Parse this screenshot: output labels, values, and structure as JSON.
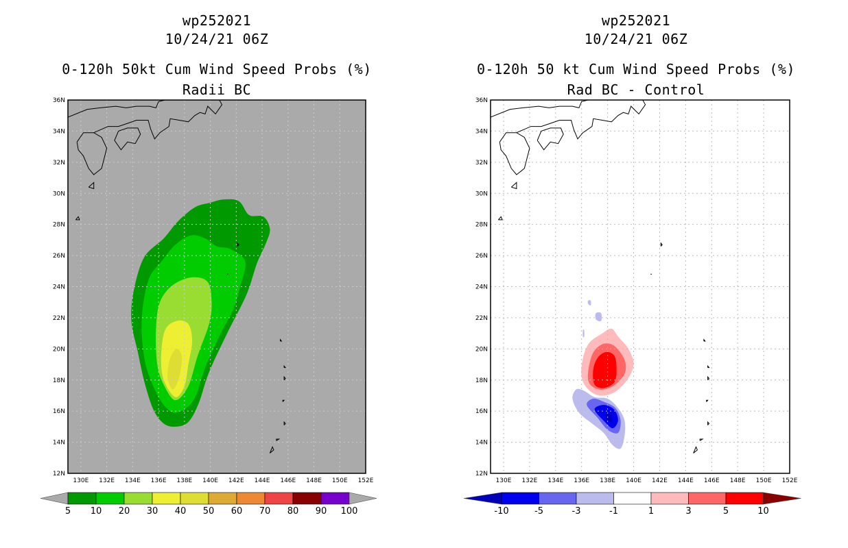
{
  "left_panel": {
    "title_lines": [
      "wp252021",
      "10/24/21 06Z",
      "0-120h 50kt Cum Wind Speed Probs (%)",
      "Radii BC"
    ],
    "colorbar": {
      "labels": [
        "5",
        "10",
        "20",
        "30",
        "40",
        "50",
        "60",
        "70",
        "80",
        "90",
        "100"
      ],
      "colors": [
        "#009900",
        "#00cc00",
        "#99dd33",
        "#eeee33",
        "#dddd33",
        "#ddaa33",
        "#ee8833",
        "#ee4444",
        "#880000",
        "#7700cc"
      ]
    }
  },
  "right_panel": {
    "title_lines": [
      "wp252021",
      "10/24/21 06Z",
      "0-120h 50 kt Cum Wind Speed Probs (%)",
      "Rad BC - Control"
    ],
    "colorbar": {
      "labels": [
        "-10",
        "-5",
        "-3",
        "-1",
        "1",
        "3",
        "5",
        "10"
      ],
      "colors": [
        "#0000bb",
        "#0000ee",
        "#6666ee",
        "#bbbbee",
        "#ffffff",
        "#ffbbbb",
        "#ff6666",
        "#ff0000",
        "#880000"
      ]
    }
  },
  "chart_data": [
    {
      "type": "heatmap",
      "title": "0-120h 50kt Cum Wind Speed Probs (%)",
      "subtitle": "Radii BC",
      "storm": "wp252021",
      "valid": "10/24/21 06Z",
      "xlim": [
        129,
        152
      ],
      "ylim": [
        12,
        36
      ],
      "x_ticks": [
        "130E",
        "132E",
        "134E",
        "136E",
        "138E",
        "140E",
        "142E",
        "144E",
        "146E",
        "148E",
        "150E",
        "152E"
      ],
      "y_ticks": [
        "12N",
        "14N",
        "16N",
        "18N",
        "20N",
        "22N",
        "24N",
        "26N",
        "28N",
        "30N",
        "32N",
        "34N",
        "36N"
      ],
      "levels": [
        5,
        10,
        20,
        30,
        40,
        50,
        60,
        70,
        80,
        90,
        100
      ],
      "contours": [
        {
          "level": 5,
          "color": "#009900",
          "lonlat": [
            [
              137.3,
              15.0
            ],
            [
              138.3,
              15.3
            ],
            [
              139.1,
              16.5
            ],
            [
              139.9,
              18.5
            ],
            [
              141.3,
              21.0
            ],
            [
              142.8,
              23.5
            ],
            [
              143.6,
              25.5
            ],
            [
              144.3,
              26.8
            ],
            [
              144.6,
              27.7
            ],
            [
              144.1,
              28.5
            ],
            [
              143.0,
              28.6
            ],
            [
              142.2,
              29.5
            ],
            [
              141.0,
              29.6
            ],
            [
              140.0,
              29.4
            ],
            [
              138.8,
              29.1
            ],
            [
              137.5,
              28.2
            ],
            [
              136.4,
              27.1
            ],
            [
              134.9,
              25.9
            ],
            [
              134.1,
              23.8
            ],
            [
              133.9,
              21.8
            ],
            [
              134.4,
              19.8
            ],
            [
              134.9,
              17.9
            ],
            [
              135.6,
              16.1
            ],
            [
              136.4,
              15.2
            ]
          ]
        },
        {
          "level": 10,
          "color": "#00cc00",
          "lonlat": [
            [
              137.4,
              15.9
            ],
            [
              138.7,
              16.7
            ],
            [
              139.6,
              18.8
            ],
            [
              140.8,
              21.0
            ],
            [
              141.8,
              22.6
            ],
            [
              142.3,
              24.0
            ],
            [
              142.7,
              25.6
            ],
            [
              141.6,
              26.4
            ],
            [
              140.5,
              26.6
            ],
            [
              139.6,
              27.1
            ],
            [
              138.5,
              27.3
            ],
            [
              137.3,
              26.7
            ],
            [
              136.2,
              25.6
            ],
            [
              135.3,
              24.6
            ],
            [
              134.8,
              22.8
            ],
            [
              134.7,
              21.0
            ],
            [
              135.0,
              19.0
            ],
            [
              135.7,
              17.4
            ],
            [
              136.5,
              16.3
            ]
          ]
        },
        {
          "level": 20,
          "color": "#99dd33",
          "lonlat": [
            [
              137.3,
              16.7
            ],
            [
              138.3,
              17.6
            ],
            [
              139.0,
              19.5
            ],
            [
              139.9,
              21.6
            ],
            [
              140.1,
              23.0
            ],
            [
              139.8,
              24.3
            ],
            [
              138.6,
              24.6
            ],
            [
              137.1,
              24.1
            ],
            [
              136.1,
              23.0
            ],
            [
              135.8,
              21.2
            ],
            [
              135.9,
              19.0
            ],
            [
              136.4,
              17.7
            ]
          ]
        },
        {
          "level": 30,
          "color": "#eeee33",
          "lonlat": [
            [
              137.3,
              16.9
            ],
            [
              138.0,
              17.6
            ],
            [
              138.3,
              19.0
            ],
            [
              138.6,
              20.5
            ],
            [
              138.3,
              21.6
            ],
            [
              137.4,
              21.8
            ],
            [
              136.5,
              21.2
            ],
            [
              136.2,
              19.5
            ],
            [
              136.4,
              18.0
            ]
          ]
        },
        {
          "level": 40,
          "color": "#dddd33",
          "lonlat": [
            [
              137.1,
              17.4
            ],
            [
              137.6,
              18.2
            ],
            [
              137.8,
              19.5
            ],
            [
              137.4,
              20.0
            ],
            [
              136.9,
              19.4
            ],
            [
              136.7,
              18.2
            ]
          ]
        }
      ]
    },
    {
      "type": "heatmap",
      "title": "0-120h 50 kt Cum Wind Speed Probs (%)",
      "subtitle": "Rad BC - Control",
      "storm": "wp252021",
      "valid": "10/24/21 06Z",
      "xlim": [
        129,
        152
      ],
      "ylim": [
        12,
        36
      ],
      "x_ticks": [
        "130E",
        "132E",
        "134E",
        "136E",
        "138E",
        "140E",
        "142E",
        "144E",
        "146E",
        "148E",
        "150E",
        "152E"
      ],
      "y_ticks": [
        "12N",
        "14N",
        "16N",
        "18N",
        "20N",
        "22N",
        "24N",
        "26N",
        "28N",
        "30N",
        "32N",
        "34N",
        "36N"
      ],
      "levels": [
        -10,
        -5,
        -3,
        -1,
        1,
        3,
        5,
        10
      ],
      "contours": [
        {
          "level": 1,
          "color": "#ffbbbb",
          "lonlat": [
            [
              136.0,
              18.2
            ],
            [
              136.5,
              17.4
            ],
            [
              137.4,
              17.0
            ],
            [
              138.5,
              17.2
            ],
            [
              139.5,
              18.0
            ],
            [
              140.0,
              19.0
            ],
            [
              139.6,
              20.0
            ],
            [
              138.8,
              20.8
            ],
            [
              138.3,
              21.3
            ],
            [
              137.6,
              21.0
            ],
            [
              136.6,
              20.4
            ],
            [
              136.1,
              19.4
            ]
          ]
        },
        {
          "level": 3,
          "color": "#ff6666",
          "lonlat": [
            [
              136.5,
              18.0
            ],
            [
              137.3,
              17.4
            ],
            [
              138.4,
              17.6
            ],
            [
              139.3,
              18.4
            ],
            [
              139.3,
              19.3
            ],
            [
              138.5,
              20.2
            ],
            [
              137.6,
              20.3
            ],
            [
              136.8,
              19.6
            ]
          ]
        },
        {
          "level": 5,
          "color": "#ff0000",
          "lonlat": [
            [
              137.0,
              17.7
            ],
            [
              137.8,
              17.5
            ],
            [
              138.6,
              18.0
            ],
            [
              138.6,
              19.4
            ],
            [
              138.0,
              19.8
            ],
            [
              137.3,
              19.5
            ],
            [
              136.9,
              18.7
            ]
          ]
        },
        {
          "level": -1,
          "color": "#bbbbee",
          "lonlat": [
            [
              135.3,
              16.8
            ],
            [
              135.8,
              15.9
            ],
            [
              136.8,
              15.2
            ],
            [
              137.7,
              14.6
            ],
            [
              138.4,
              13.8
            ],
            [
              139.0,
              13.6
            ],
            [
              139.3,
              14.4
            ],
            [
              139.3,
              15.4
            ],
            [
              138.8,
              16.2
            ],
            [
              138.0,
              16.8
            ],
            [
              137.0,
              16.9
            ],
            [
              136.2,
              17.3
            ],
            [
              135.6,
              17.4
            ]
          ]
        },
        {
          "level": -3,
          "color": "#6666ee",
          "lonlat": [
            [
              136.4,
              16.4
            ],
            [
              137.2,
              15.6
            ],
            [
              138.0,
              14.8
            ],
            [
              138.8,
              14.6
            ],
            [
              139.0,
              15.4
            ],
            [
              138.6,
              16.2
            ],
            [
              137.7,
              16.6
            ],
            [
              136.9,
              16.8
            ]
          ]
        },
        {
          "level": -5,
          "color": "#0000ee",
          "lonlat": [
            [
              137.0,
              16.1
            ],
            [
              137.8,
              15.3
            ],
            [
              138.4,
              14.9
            ],
            [
              138.8,
              15.4
            ],
            [
              138.5,
              16.1
            ],
            [
              137.7,
              16.4
            ]
          ]
        },
        {
          "level": -10,
          "color": "#0000bb",
          "lonlat": [
            [
              137.9,
              15.5
            ],
            [
              138.3,
              15.3
            ],
            [
              138.3,
              15.8
            ],
            [
              137.9,
              15.9
            ]
          ]
        },
        {
          "level": -1,
          "color": "#bbbbee",
          "lonlat": [
            [
              137.1,
              21.9
            ],
            [
              137.5,
              21.8
            ],
            [
              137.5,
              22.3
            ],
            [
              137.1,
              22.3
            ]
          ]
        },
        {
          "level": -1,
          "color": "#bbbbee",
          "lonlat": [
            [
              136.5,
              22.9
            ],
            [
              136.7,
              22.8
            ],
            [
              136.7,
              23.1
            ],
            [
              136.5,
              23.1
            ]
          ]
        },
        {
          "level": -1,
          "color": "#bbbbee",
          "lonlat": [
            [
              136.1,
              20.8
            ],
            [
              136.2,
              20.8
            ],
            [
              136.2,
              21.2
            ],
            [
              136.1,
              21.2
            ]
          ]
        }
      ]
    }
  ]
}
